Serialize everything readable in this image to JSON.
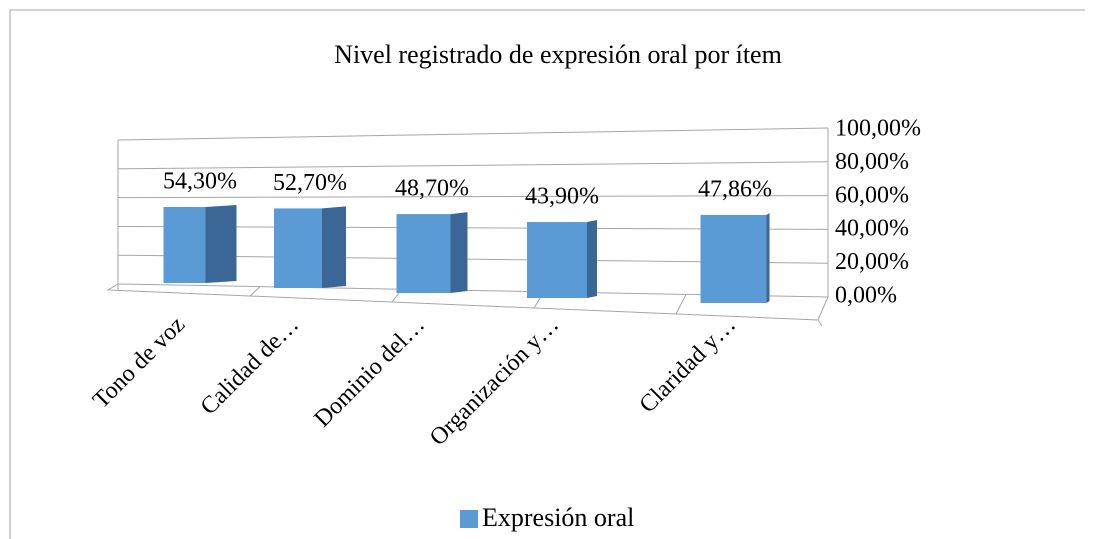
{
  "chart_data": {
    "type": "bar",
    "title": "Nivel registrado de expresión oral por ítem",
    "categories": [
      "Tono de voz",
      "Calidad de…",
      "Dominio del…",
      "Organización y…",
      "Claridad y…"
    ],
    "series": [
      {
        "name": "Expresión oral",
        "color": "#5b9bd5",
        "values": [
          54.3,
          52.7,
          48.7,
          43.9,
          47.86
        ],
        "value_labels": [
          "54,30%",
          "52,70%",
          "48,70%",
          "43,90%",
          "47,86%"
        ]
      }
    ],
    "ylim": [
      0,
      100
    ],
    "yticks": [
      {
        "value": 0,
        "label": "0,00%"
      },
      {
        "value": 20,
        "label": "20,00%"
      },
      {
        "value": 40,
        "label": "40,00%"
      },
      {
        "value": 60,
        "label": "60,00%"
      },
      {
        "value": 80,
        "label": "80,00%"
      },
      {
        "value": 100,
        "label": "100,00%"
      }
    ],
    "grid": true,
    "legend": "bottom"
  }
}
